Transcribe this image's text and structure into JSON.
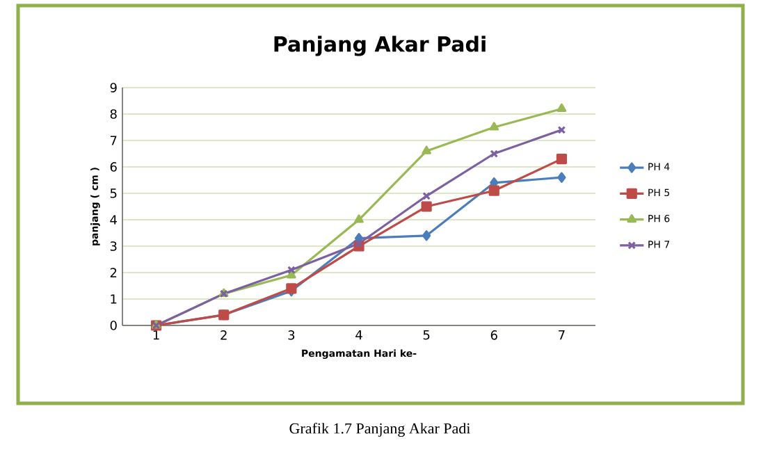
{
  "chart_data": {
    "type": "line",
    "title": "Panjang Akar Padi",
    "xlabel": "Pengamatan Hari ke-",
    "ylabel": "panjang ( cm )",
    "categories": [
      "1",
      "2",
      "3",
      "4",
      "5",
      "6",
      "7"
    ],
    "ylim": [
      0,
      9
    ],
    "yticks": [
      0,
      1,
      2,
      3,
      4,
      5,
      6,
      7,
      8,
      9
    ],
    "grid": "y",
    "legend": "right",
    "line_style": "solid",
    "series": [
      {
        "name": "PH 4",
        "color": "#4a7ebb",
        "marker": "diamond",
        "values": [
          0,
          0.4,
          1.3,
          3.3,
          3.4,
          5.4,
          5.6
        ]
      },
      {
        "name": "PH 5",
        "color": "#be4b48",
        "marker": "square",
        "values": [
          0,
          0.4,
          1.4,
          3.0,
          4.5,
          5.1,
          6.3
        ]
      },
      {
        "name": "PH 6",
        "color": "#98b954",
        "marker": "triangle",
        "values": [
          0,
          1.2,
          1.9,
          4.0,
          6.6,
          7.5,
          8.2
        ]
      },
      {
        "name": "PH 7",
        "color": "#7d60a0",
        "marker": "cross",
        "values": [
          0,
          1.2,
          2.1,
          3.1,
          4.9,
          6.5,
          7.4
        ]
      }
    ],
    "annotations": [
      "Grafik 1.7 Panjang Akar Padi"
    ]
  }
}
